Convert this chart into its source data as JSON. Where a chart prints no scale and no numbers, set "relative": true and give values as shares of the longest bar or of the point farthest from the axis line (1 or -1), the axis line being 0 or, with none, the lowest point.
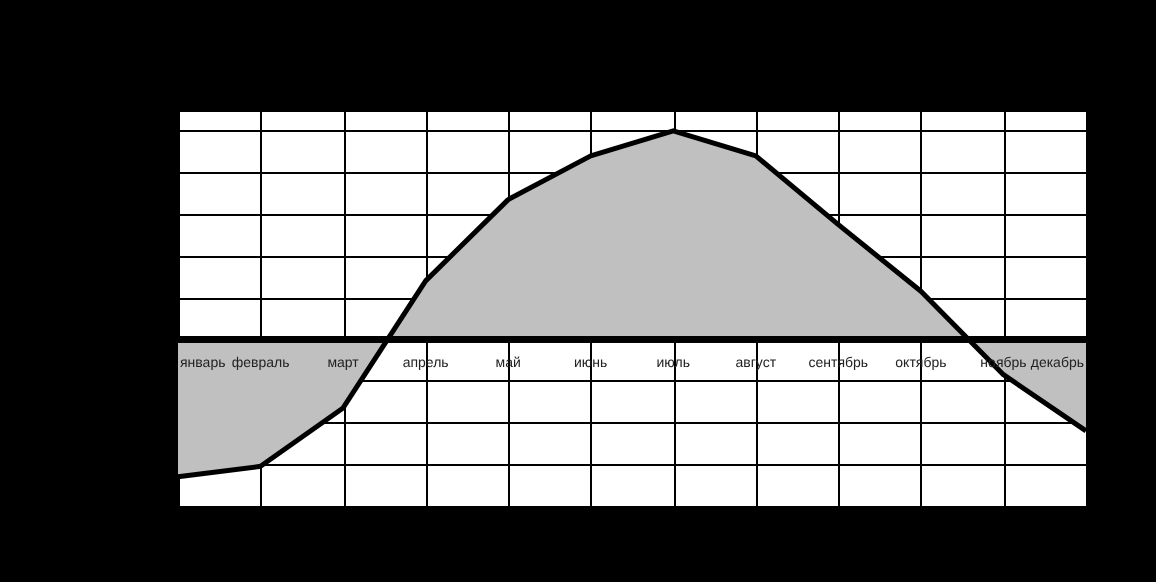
{
  "chart_data": {
    "type": "area",
    "relative": true,
    "grid": true,
    "categories": [
      "январь",
      "февраль",
      "март",
      "апрель",
      "май",
      "июнь",
      "июль",
      "август",
      "сентябрь",
      "октябрь",
      "ноябрь",
      "декабрь"
    ],
    "series": [
      {
        "color": "#c0c0c0",
        "values": [
          -0.66,
          -0.61,
          -0.33,
          0.28,
          0.67,
          0.88,
          1,
          0.88,
          0.55,
          0.23,
          -0.17,
          -0.44
        ]
      }
    ]
  }
}
